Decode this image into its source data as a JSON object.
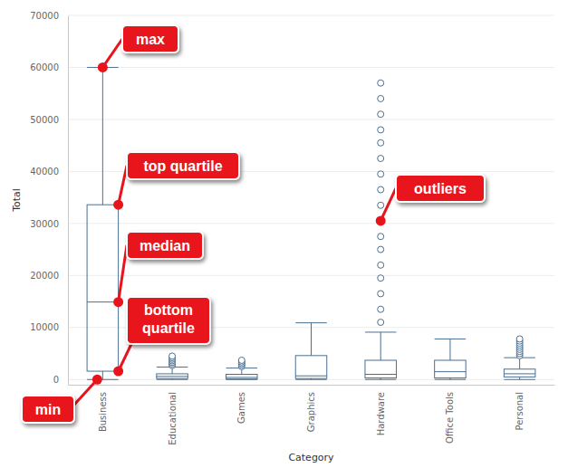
{
  "chart_data": {
    "type": "box",
    "x_label": "Category",
    "y_label": "Total",
    "categories": [
      "Business",
      "Educational",
      "Games",
      "Graphics",
      "Hardware",
      "Office Tools",
      "Personal"
    ],
    "min": [
      0,
      0,
      0,
      0,
      0,
      0,
      0
    ],
    "q1": [
      1600,
      200,
      100,
      200,
      300,
      300,
      500
    ],
    "median": [
      14900,
      600,
      400,
      700,
      1000,
      1500,
      1100
    ],
    "q3": [
      33600,
      1100,
      1000,
      4600,
      3700,
      3700,
      2000
    ],
    "max": [
      60000,
      2400,
      2200,
      10900,
      9100,
      7800,
      4200
    ],
    "outliers": [
      [],
      [
        2700,
        3000,
        3300,
        3600,
        3900,
        4200,
        4500
      ],
      [
        2500,
        2800,
        3100,
        3400,
        3700
      ],
      [],
      [
        57000,
        54000,
        51000,
        48000,
        45500,
        42500,
        39500,
        36500,
        33500,
        30500,
        27500,
        25000,
        22000,
        19500,
        16500,
        13500,
        11000
      ],
      [],
      [
        4600,
        5000,
        5400,
        5800,
        6200,
        6600,
        7000,
        7400,
        7800
      ]
    ],
    "color": "#4a6f8f",
    "ylim": [
      -1000,
      70000
    ],
    "yticks": [
      0,
      10000,
      20000,
      30000,
      40000,
      50000,
      60000,
      70000
    ],
    "grid": true,
    "annotations": [
      "max",
      "top quartile",
      "median",
      "outliers",
      "min",
      "bottom quartile"
    ]
  }
}
